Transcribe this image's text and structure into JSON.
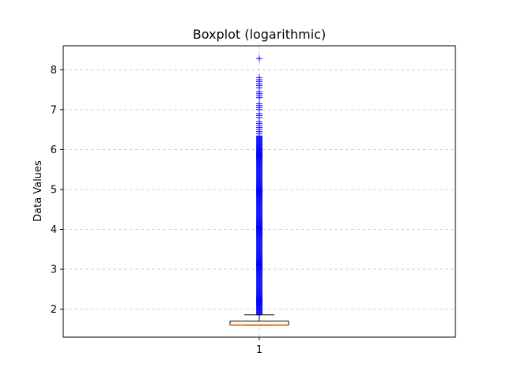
{
  "chart_data": {
    "type": "boxplot",
    "title": "Boxplot (logarithmic)",
    "xlabel": "",
    "ylabel": "Data Values",
    "categories": [
      "1"
    ],
    "ylim": [
      1.3,
      8.6
    ],
    "yticks": [
      "2",
      "3",
      "4",
      "5",
      "6",
      "7",
      "8"
    ],
    "grid": true,
    "boxes": [
      {
        "category": "1",
        "whisker_low": 1.6,
        "q1": 1.6,
        "median": 1.61,
        "q3": 1.7,
        "whisker_high": 1.86
      }
    ],
    "outliers": {
      "dense_min": 1.86,
      "dense_max": 6.35,
      "sparse": [
        6.4,
        6.45,
        6.5,
        6.55,
        6.6,
        6.65,
        6.7,
        6.8,
        6.85,
        6.9,
        7.0,
        7.05,
        7.1,
        7.15,
        7.3,
        7.35,
        7.4,
        7.45,
        7.55,
        7.6,
        7.65,
        7.7,
        7.75,
        7.8,
        8.28
      ]
    },
    "colors": {
      "box": "#000000",
      "median": "#ff7f0e",
      "outlier": "#0000ff",
      "grid": "#b0b0b0"
    }
  }
}
